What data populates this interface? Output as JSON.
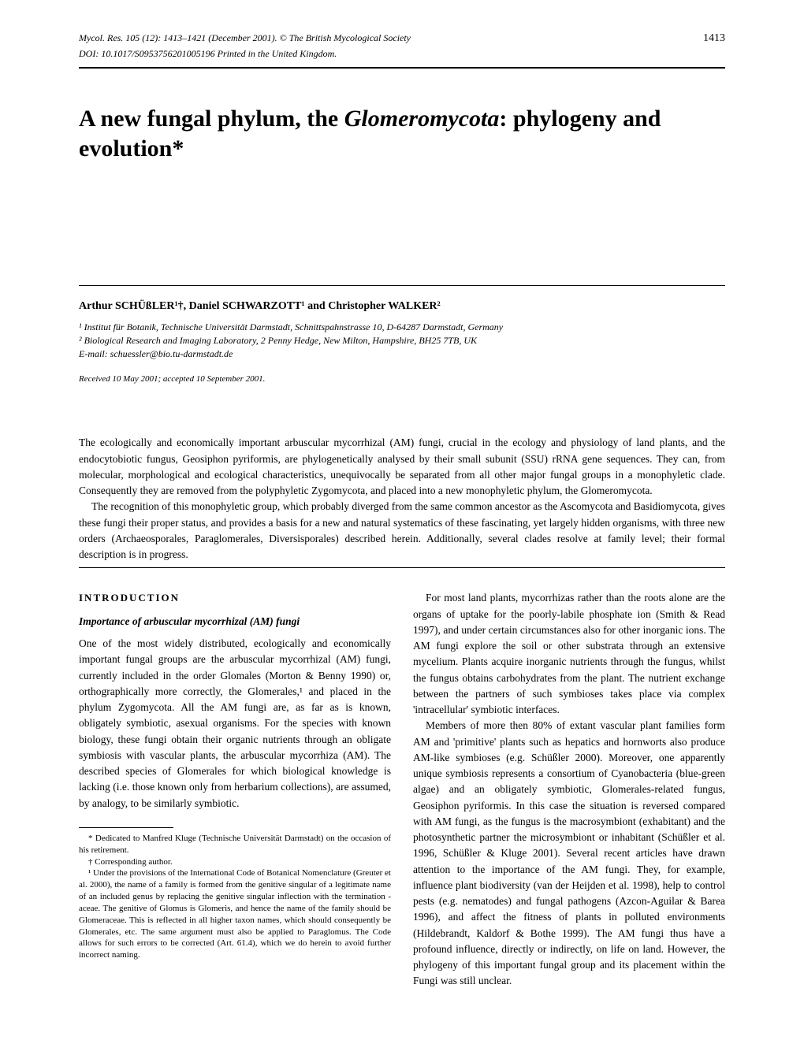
{
  "header": {
    "journal_line": "Mycol. Res. 105 (12): 1413–1421 (December 2001).   © The British Mycological Society",
    "doi_line": "DOI: 10.1017/S0953756201005196   Printed in the United Kingdom.",
    "page_number": "1413"
  },
  "title": {
    "prefix": "A new fungal phylum, the ",
    "italic_part": "Glomeromycota",
    "suffix": ": phylogeny and evolution*"
  },
  "authors": "Arthur SCHÜßLER¹†, Daniel SCHWARZOTT¹ and Christopher WALKER²",
  "affiliations": {
    "aff1": "¹ Institut für Botanik, Technische Universität Darmstadt, Schnittspahnstrasse 10, D-64287 Darmstadt, Germany",
    "aff2": "² Biological Research and Imaging Laboratory, 2 Penny Hedge, New Milton, Hampshire, BH25 7TB, UK",
    "email": "E-mail: schuessler@bio.tu-darmstadt.de"
  },
  "received": "Received 10 May 2001; accepted 10 September 2001.",
  "abstract": {
    "para1": "The ecologically and economically important arbuscular mycorrhizal (AM) fungi, crucial in the ecology and physiology of land plants, and the endocytobiotic fungus, Geosiphon pyriformis, are phylogenetically analysed by their small subunit (SSU) rRNA gene sequences. They can, from molecular, morphological and ecological characteristics, unequivocally be separated from all other major fungal groups in a monophyletic clade. Consequently they are removed from the polyphyletic Zygomycota, and placed into a new monophyletic phylum, the Glomeromycota.",
    "para2": "The recognition of this monophyletic group, which probably diverged from the same common ancestor as the Ascomycota and Basidiomycota, gives these fungi their proper status, and provides a basis for a new and natural systematics of these fascinating, yet largely hidden organisms, with three new orders (Archaeosporales, Paraglomerales, Diversisporales) described herein. Additionally, several clades resolve at family level; their formal description is in progress."
  },
  "sections": {
    "introduction_heading": "INTRODUCTION",
    "importance_heading": "Importance of arbuscular mycorrhizal (AM) fungi"
  },
  "left_column": {
    "para1": "One of the most widely distributed, ecologically and economically important fungal groups are the arbuscular mycorrhizal (AM) fungi, currently included in the order Glomales (Morton & Benny 1990) or, orthographically more correctly, the Glomerales,¹ and placed in the phylum Zygomycota. All the AM fungi are, as far as is known, obligately symbiotic, asexual organisms. For the species with known biology, these fungi obtain their organic nutrients through an obligate symbiosis with vascular plants, the arbuscular mycorrhiza (AM). The described species of Glomerales for which biological knowledge is lacking (i.e. those known only from herbarium collections), are assumed, by analogy, to be similarly symbiotic."
  },
  "right_column": {
    "para1": "For most land plants, mycorrhizas rather than the roots alone are the organs of uptake for the poorly-labile phosphate ion (Smith & Read 1997), and under certain circumstances also for other inorganic ions. The AM fungi explore the soil or other substrata through an extensive mycelium. Plants acquire inorganic nutrients through the fungus, whilst the fungus obtains carbohydrates from the plant. The nutrient exchange between the partners of such symbioses takes place via complex 'intracellular' symbiotic interfaces.",
    "para2": "Members of more then 80% of extant vascular plant families form AM and 'primitive' plants such as hepatics and hornworts also produce AM-like symbioses (e.g. Schüßler 2000). Moreover, one apparently unique symbiosis represents a consortium of Cyanobacteria (blue-green algae) and an obligately symbiotic, Glomerales-related fungus, Geosiphon pyriformis. In this case the situation is reversed compared with AM fungi, as the fungus is the macrosymbiont (exhabitant) and the photosynthetic partner the microsymbiont or inhabitant (Schüßler et al. 1996, Schüßler & Kluge 2001). Several recent articles have drawn attention to the importance of the AM fungi. They, for example, influence plant biodiversity (van der Heijden et al. 1998), help to control pests (e.g. nematodes) and fungal pathogens (Azcon-Aguilar & Barea 1996), and affect the fitness of plants in polluted environments (Hildebrandt, Kaldorf & Bothe 1999). The AM fungi thus have a profound influence, directly or indirectly, on life on land. However, the phylogeny of this important fungal group and its placement within the Fungi was still unclear."
  },
  "footnotes": {
    "fn_star": "* Dedicated to Manfred Kluge (Technische Universität Darmstadt) on the occasion of his retirement.",
    "fn_dagger": "† Corresponding author.",
    "fn_1": "¹ Under the provisions of the International Code of Botanical Nomenclature (Greuter et al. 2000), the name of a family is formed from the genitive singular of a legitimate name of an included genus by replacing the genitive singular inflection with the termination -aceae. The genitive of Glomus is Glomeris, and hence the name of the family should be Glomeraceae. This is reflected in all higher taxon names, which should consequently be Glomerales, etc. The same argument must also be applied to Paraglomus. The Code allows for such errors to be corrected (Art. 61.4), which we do herein to avoid further incorrect naming."
  },
  "colors": {
    "text": "#000000",
    "background": "#ffffff",
    "rule": "#000000"
  }
}
